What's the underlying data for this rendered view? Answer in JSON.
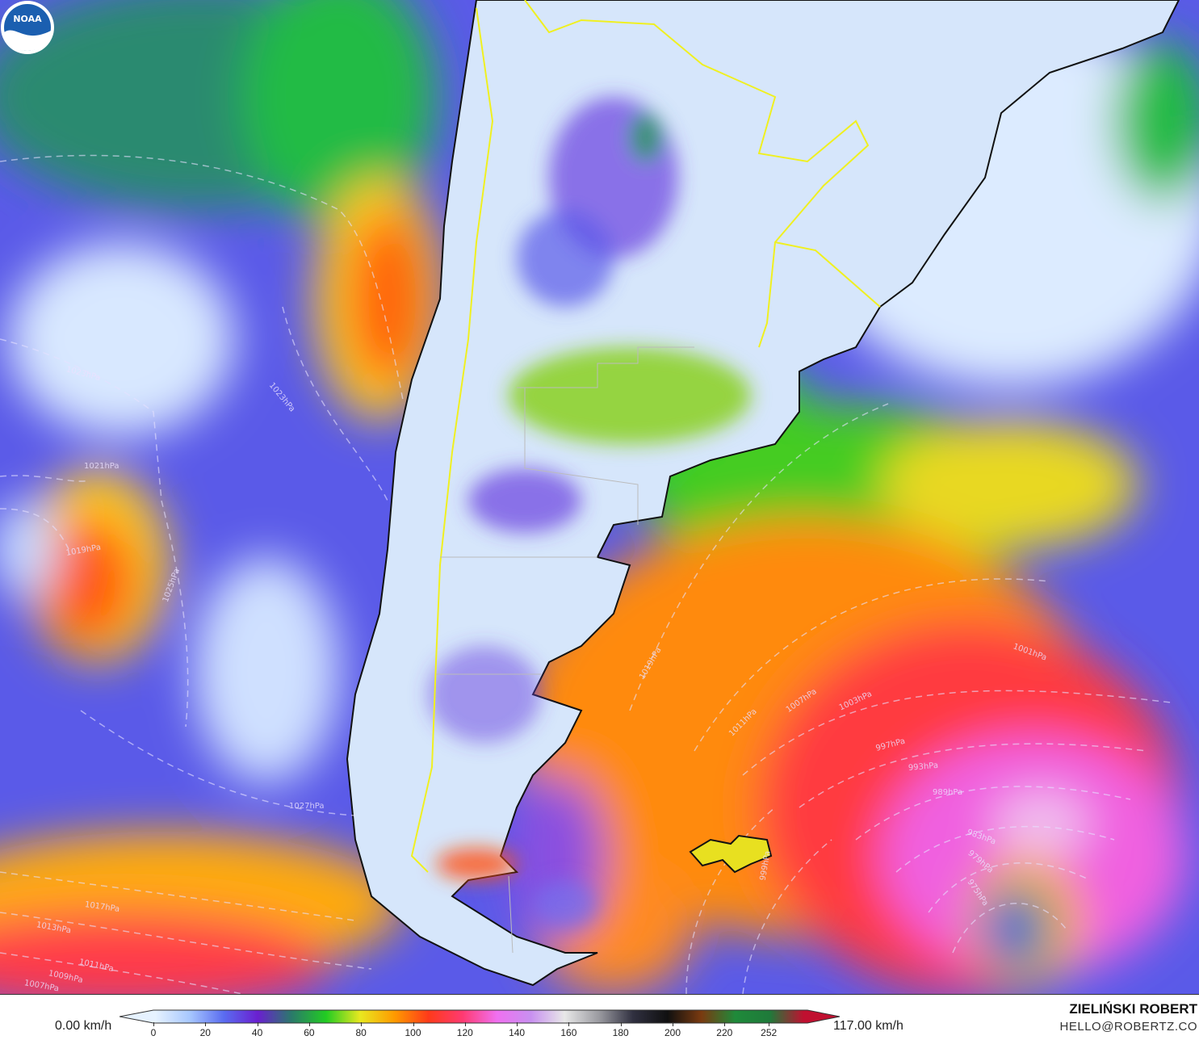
{
  "map": {
    "variable_unit": "km/h",
    "isobar_labels": [
      "1023hPa",
      "1023hPa",
      "1021hPa",
      "1019hPa",
      "1025hPa",
      "1027hPa",
      "1017hPa",
      "1013hPa",
      "1011hPa",
      "1009hPa",
      "1007hPa",
      "1019hPa",
      "1011hPa",
      "1007hPa",
      "1003hPa",
      "997hPa",
      "993hPa",
      "989hPa",
      "983hPa",
      "979hPa",
      "975hPa",
      "1001hPa",
      "999hPa"
    ],
    "logo": "NOAA"
  },
  "legend": {
    "min_label": "0.00 km/h",
    "max_label": "117.00 km/h",
    "ticks": [
      "0",
      "20",
      "40",
      "60",
      "80",
      "100",
      "120",
      "140",
      "160",
      "180",
      "200",
      "220",
      "252"
    ],
    "colors": [
      "#e6f2ff",
      "#a8c8ff",
      "#5a6cf0",
      "#6a1fd0",
      "#2a7a6a",
      "#22cc22",
      "#e8e820",
      "#ff9a00",
      "#ff3a1a",
      "#ff3a70",
      "#f070f0",
      "#c890f0",
      "#e8e8e8",
      "#9a9aa0",
      "#303040",
      "#101010",
      "#7a3a10",
      "#1f8a3a",
      "#1f7a3a",
      "#c01030"
    ]
  },
  "credits": {
    "author": "ZIELIŃSKI ROBERT",
    "email": "HELLO@ROBERTZ.CO"
  }
}
